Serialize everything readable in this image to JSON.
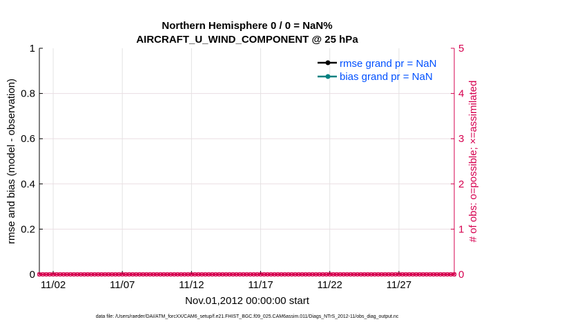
{
  "chart_data": {
    "type": "line",
    "title": [
      "Northern Hemisphere 0 / 0 = NaN%",
      "AIRCRAFT_U_WIND_COMPONENT @ 25 hPa"
    ],
    "xlabel": "Nov.01,2012 00:00:00 start",
    "ylabel": "rmse and bias (model - observation)",
    "y2label": "# of obs: o=possible; ×=assimilated",
    "footnote": "data file: /Users/raeder/DAI/ATM_forcXX/CAM6_setup/f.e21.FHIST_BGC.f09_025.CAM6assim.011/Diags_NTrS_2012-11/obs_diag_output.nc",
    "xlim_days": [
      0,
      30
    ],
    "x_ticks": [
      {
        "day": 1,
        "label": "11/02"
      },
      {
        "day": 6,
        "label": "11/07"
      },
      {
        "day": 11,
        "label": "11/12"
      },
      {
        "day": 16,
        "label": "11/17"
      },
      {
        "day": 21,
        "label": "11/22"
      },
      {
        "day": 26,
        "label": "11/27"
      }
    ],
    "ylim": [
      0,
      1
    ],
    "y_ticks": [
      "0",
      "0.2",
      "0.4",
      "0.6",
      "0.8",
      "1"
    ],
    "y2lim": [
      0,
      5
    ],
    "y2_ticks": [
      "0",
      "1",
      "2",
      "3",
      "4",
      "5"
    ],
    "grid": true,
    "legend_placement": "top-right",
    "series": [
      {
        "name": "rmse grand pr = NaN",
        "color": "#000000",
        "values": []
      },
      {
        "name": "bias grand pr = NaN",
        "color": "#008080",
        "values": []
      },
      {
        "name": "obs possible",
        "color": "#d6004f",
        "marker": "o",
        "interval_hours": 6,
        "value": 0
      },
      {
        "name": "obs assimilated",
        "color": "#d6004f",
        "marker": "x",
        "interval_hours": 6,
        "value": 0
      }
    ],
    "colors": {
      "right_axis": "#d6004f",
      "legend_text": "#0050ff"
    }
  }
}
